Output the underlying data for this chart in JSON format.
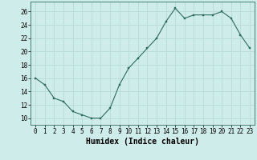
{
  "x": [
    0,
    1,
    2,
    3,
    4,
    5,
    6,
    7,
    8,
    9,
    10,
    11,
    12,
    13,
    14,
    15,
    16,
    17,
    18,
    19,
    20,
    21,
    22,
    23
  ],
  "y": [
    16,
    15,
    13,
    12.5,
    11,
    10.5,
    10,
    10,
    11.5,
    15,
    17.5,
    19,
    20.5,
    22,
    24.5,
    26.5,
    25,
    25.5,
    25.5,
    25.5,
    26,
    25,
    22.5,
    20.5
  ],
  "line_color": "#2e6b5e",
  "marker_color": "#2e6b5e",
  "bg_color": "#ceecea",
  "grid_color": "#b8dbd8",
  "xlabel": "Humidex (Indice chaleur)",
  "ylim": [
    9,
    27.5
  ],
  "xlim": [
    -0.5,
    23.5
  ],
  "yticks": [
    10,
    12,
    14,
    16,
    18,
    20,
    22,
    24,
    26
  ],
  "xtick_labels": [
    "0",
    "1",
    "2",
    "3",
    "4",
    "5",
    "6",
    "7",
    "8",
    "9",
    "10",
    "11",
    "12",
    "13",
    "14",
    "15",
    "16",
    "17",
    "18",
    "19",
    "20",
    "21",
    "22",
    "23"
  ],
  "tick_fontsize": 5.5,
  "label_fontsize": 7
}
